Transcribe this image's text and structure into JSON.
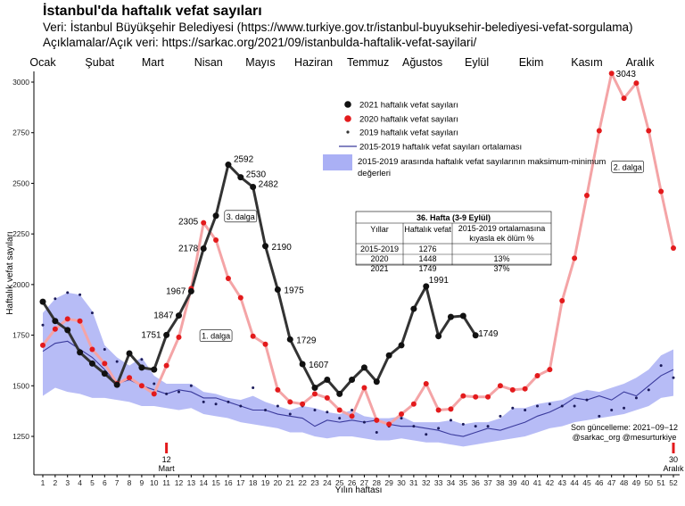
{
  "header": {
    "title": "İstanbul'da haftalık vefat sayıları",
    "source_line": "Veri: İstanbul Büyükşehir Belediyesi (https://www.turkiye.gov.tr/istanbul-buyuksehir-belediyesi-vefat-sorgulama)",
    "notes_line": "Açıklamalar/Açık veri:  https://sarkac.org/2021/09/istanbulda-haftalik-vefat-sayilari/"
  },
  "chart_data": {
    "type": "line",
    "title": "İstanbul'da haftalık vefat sayıları",
    "xlabel": "Yılın haftası",
    "ylabel": "Haftalık vefat sayıları",
    "xlim": [
      1,
      52
    ],
    "ylim": [
      1150,
      3080
    ],
    "y_ticks": [
      1250,
      1500,
      1750,
      2000,
      2250,
      2500,
      2750,
      3000
    ],
    "x_ticks": [
      1,
      2,
      3,
      4,
      5,
      6,
      7,
      8,
      9,
      10,
      11,
      12,
      13,
      14,
      15,
      16,
      17,
      18,
      19,
      20,
      21,
      22,
      23,
      24,
      25,
      26,
      27,
      28,
      29,
      30,
      31,
      32,
      33,
      34,
      35,
      36,
      37,
      38,
      39,
      40,
      41,
      42,
      43,
      44,
      45,
      46,
      47,
      48,
      49,
      50,
      51,
      52
    ],
    "grid": false,
    "legend_position": "upper-center",
    "month_labels": [
      {
        "label": "Ocak",
        "week": 1
      },
      {
        "label": "Şubat",
        "week": 5.6
      },
      {
        "label": "Mart",
        "week": 9.9
      },
      {
        "label": "Nisan",
        "week": 14.4
      },
      {
        "label": "Mayıs",
        "week": 18.6
      },
      {
        "label": "Haziran",
        "week": 22.9
      },
      {
        "label": "Temmuz",
        "week": 27.3
      },
      {
        "label": "Ağustos",
        "week": 31.7
      },
      {
        "label": "Eylül",
        "week": 36.1
      },
      {
        "label": "Ekim",
        "week": 40.5
      },
      {
        "label": "Kasım",
        "week": 45
      },
      {
        "label": "Aralık",
        "week": 49.3
      }
    ],
    "series": [
      {
        "name": "2021 haftalık vefat sayıları",
        "color": "#2b2b2b",
        "x": [
          1,
          2,
          3,
          4,
          5,
          6,
          7,
          8,
          9,
          10,
          11,
          12,
          13,
          14,
          15,
          16,
          17,
          18,
          19,
          20,
          21,
          22,
          23,
          24,
          25,
          26,
          27,
          28,
          29,
          30,
          31,
          32,
          33,
          34,
          35,
          36
        ],
        "values": [
          1915,
          1820,
          1775,
          1665,
          1610,
          1560,
          1505,
          1660,
          1590,
          1580,
          1751,
          1847,
          1967,
          2178,
          2340,
          2592,
          2530,
          2482,
          2190,
          1975,
          1729,
          1607,
          1490,
          1530,
          1460,
          1530,
          1590,
          1520,
          1650,
          1700,
          1880,
          1991,
          1745,
          1840,
          1845,
          1749
        ]
      },
      {
        "name": "2020 haftalık vefat sayıları",
        "color": "#e31a1c",
        "x": [
          1,
          2,
          3,
          4,
          5,
          6,
          7,
          8,
          9,
          10,
          11,
          12,
          13,
          14,
          15,
          16,
          17,
          18,
          19,
          20,
          21,
          22,
          23,
          24,
          25,
          26,
          27,
          28,
          29,
          30,
          31,
          32,
          33,
          34,
          35,
          36,
          37,
          38,
          39,
          40,
          41,
          42,
          43,
          44,
          45,
          46,
          47,
          48,
          49,
          50,
          51,
          52
        ],
        "values": [
          1700,
          1780,
          1830,
          1820,
          1680,
          1610,
          1510,
          1540,
          1500,
          1460,
          1600,
          1740,
          1980,
          2305,
          2220,
          2030,
          1935,
          1745,
          1705,
          1480,
          1420,
          1410,
          1460,
          1440,
          1380,
          1350,
          1490,
          1330,
          1310,
          1360,
          1410,
          1510,
          1380,
          1385,
          1450,
          1445,
          1445,
          1500,
          1480,
          1485,
          1550,
          1580,
          1920,
          2130,
          2440,
          2760,
          3043,
          2920,
          2995,
          2760,
          2460,
          2180
        ]
      },
      {
        "name": "2019 haftalık vefat sayıları",
        "color": "#2b2b2b",
        "x": [
          1,
          2,
          3,
          4,
          5,
          6,
          7,
          8,
          9,
          10,
          11,
          12,
          13,
          14,
          15,
          16,
          17,
          18,
          19,
          20,
          21,
          22,
          23,
          24,
          25,
          26,
          27,
          28,
          29,
          30,
          31,
          32,
          33,
          34,
          35,
          36,
          37,
          38,
          39,
          40,
          41,
          42,
          43,
          44,
          45,
          46,
          47,
          48,
          49,
          50,
          51,
          52
        ],
        "values": [
          1800,
          1930,
          1960,
          1950,
          1860,
          1680,
          1620,
          1540,
          1630,
          1510,
          1460,
          1470,
          1500,
          1420,
          1410,
          1420,
          1400,
          1490,
          1380,
          1400,
          1360,
          1400,
          1380,
          1370,
          1340,
          1380,
          1320,
          1270,
          1300,
          1340,
          1300,
          1260,
          1290,
          1330,
          1310,
          1300,
          1300,
          1350,
          1390,
          1380,
          1400,
          1410,
          1400,
          1400,
          1430,
          1350,
          1380,
          1390,
          1440,
          1480,
          1600,
          1540
        ]
      },
      {
        "name": "2015-2019 haftalık vefat sayıları ortalaması",
        "color": "#3a3a9c",
        "x": [
          1,
          2,
          3,
          4,
          5,
          6,
          7,
          8,
          9,
          10,
          11,
          12,
          13,
          14,
          15,
          16,
          17,
          18,
          19,
          20,
          21,
          22,
          23,
          24,
          25,
          26,
          27,
          28,
          29,
          30,
          31,
          32,
          33,
          34,
          35,
          36,
          37,
          38,
          39,
          40,
          41,
          42,
          43,
          44,
          45,
          46,
          47,
          48,
          49,
          50,
          51,
          52
        ],
        "values": [
          1670,
          1710,
          1720,
          1680,
          1640,
          1580,
          1510,
          1530,
          1500,
          1480,
          1460,
          1480,
          1470,
          1440,
          1440,
          1420,
          1400,
          1380,
          1380,
          1360,
          1350,
          1340,
          1300,
          1330,
          1320,
          1330,
          1320,
          1330,
          1310,
          1300,
          1300,
          1290,
          1280,
          1260,
          1250,
          1270,
          1290,
          1280,
          1300,
          1320,
          1350,
          1370,
          1400,
          1440,
          1430,
          1450,
          1430,
          1470,
          1450,
          1500,
          1550,
          1580
        ]
      },
      {
        "name": "2015-2019 arasında haftalık vefat sayılarının maksimum-minimum değerleri",
        "color": "#aab0f5",
        "x": [
          1,
          2,
          3,
          4,
          5,
          6,
          7,
          8,
          9,
          10,
          11,
          12,
          13,
          14,
          15,
          16,
          17,
          18,
          19,
          20,
          21,
          22,
          23,
          24,
          25,
          26,
          27,
          28,
          29,
          30,
          31,
          32,
          33,
          34,
          35,
          36,
          37,
          38,
          39,
          40,
          41,
          42,
          43,
          44,
          45,
          46,
          47,
          48,
          49,
          50,
          51,
          52
        ],
        "max": [
          1860,
          1930,
          1960,
          1950,
          1870,
          1700,
          1640,
          1600,
          1640,
          1550,
          1510,
          1510,
          1510,
          1470,
          1460,
          1440,
          1430,
          1450,
          1420,
          1400,
          1380,
          1400,
          1390,
          1370,
          1360,
          1380,
          1350,
          1340,
          1340,
          1350,
          1320,
          1320,
          1320,
          1330,
          1310,
          1320,
          1320,
          1340,
          1390,
          1390,
          1410,
          1420,
          1430,
          1460,
          1480,
          1470,
          1490,
          1510,
          1540,
          1580,
          1650,
          1680
        ],
        "min": [
          1450,
          1490,
          1470,
          1460,
          1440,
          1440,
          1430,
          1420,
          1400,
          1400,
          1390,
          1380,
          1390,
          1360,
          1350,
          1340,
          1320,
          1310,
          1300,
          1290,
          1270,
          1270,
          1250,
          1240,
          1250,
          1250,
          1240,
          1230,
          1230,
          1240,
          1230,
          1220,
          1220,
          1210,
          1200,
          1210,
          1220,
          1230,
          1240,
          1250,
          1270,
          1290,
          1300,
          1320,
          1330,
          1340,
          1350,
          1360,
          1380,
          1400,
          1440,
          1450
        ]
      }
    ],
    "point_labels": [
      {
        "series": "2021",
        "week": 11,
        "text": "1751"
      },
      {
        "series": "2021",
        "week": 12,
        "text": "1847"
      },
      {
        "series": "2021",
        "week": 13,
        "text": "1967"
      },
      {
        "series": "2021",
        "week": 14,
        "text": "2178"
      },
      {
        "series": "2021",
        "week": 16,
        "text": "2592"
      },
      {
        "series": "2021",
        "week": 17,
        "text": "2530"
      },
      {
        "series": "2021",
        "week": 18,
        "text": "2482"
      },
      {
        "series": "2021",
        "week": 19,
        "text": "2190"
      },
      {
        "series": "2021",
        "week": 20,
        "text": "1975"
      },
      {
        "series": "2021",
        "week": 21,
        "text": "1729"
      },
      {
        "series": "2021",
        "week": 22,
        "text": "1607"
      },
      {
        "series": "2021",
        "week": 32,
        "text": "1991"
      },
      {
        "series": "2021",
        "week": 36,
        "text": "1749"
      },
      {
        "series": "2020",
        "week": 14,
        "text": "2305"
      },
      {
        "series": "2020",
        "week": 47,
        "text": "3043"
      }
    ],
    "annotations": [
      {
        "text": "1. dalga",
        "week": 15,
        "value": 1745
      },
      {
        "text": "3. dalga",
        "week": 17,
        "value": 2335
      },
      {
        "text": "2. dalga",
        "week": 48.3,
        "value": 2580
      }
    ],
    "markers": [
      {
        "week": 11,
        "top_text": "12",
        "bottom_text": "Mart"
      },
      {
        "week": 52,
        "top_text": "30",
        "bottom_text": "Aralık"
      }
    ],
    "footer_note_lines": [
      "Son güncelleme: 2021−09−12",
      "@sarkac_org @mesurturkiye"
    ],
    "table": {
      "title": "36. Hafta (3-9 Eylül)",
      "columns": [
        "Yıllar",
        "Haftalık vefat",
        "2015-2019 ortalamasına kıyasla ek ölüm %"
      ],
      "rows": [
        {
          "year": "2015-2019",
          "deaths": "1276",
          "excess": ""
        },
        {
          "year": "2020",
          "deaths": "1448",
          "excess": "13%"
        },
        {
          "year": "2021",
          "deaths": "1749",
          "excess": "37%",
          "color": "#1f6fb4"
        }
      ]
    }
  }
}
